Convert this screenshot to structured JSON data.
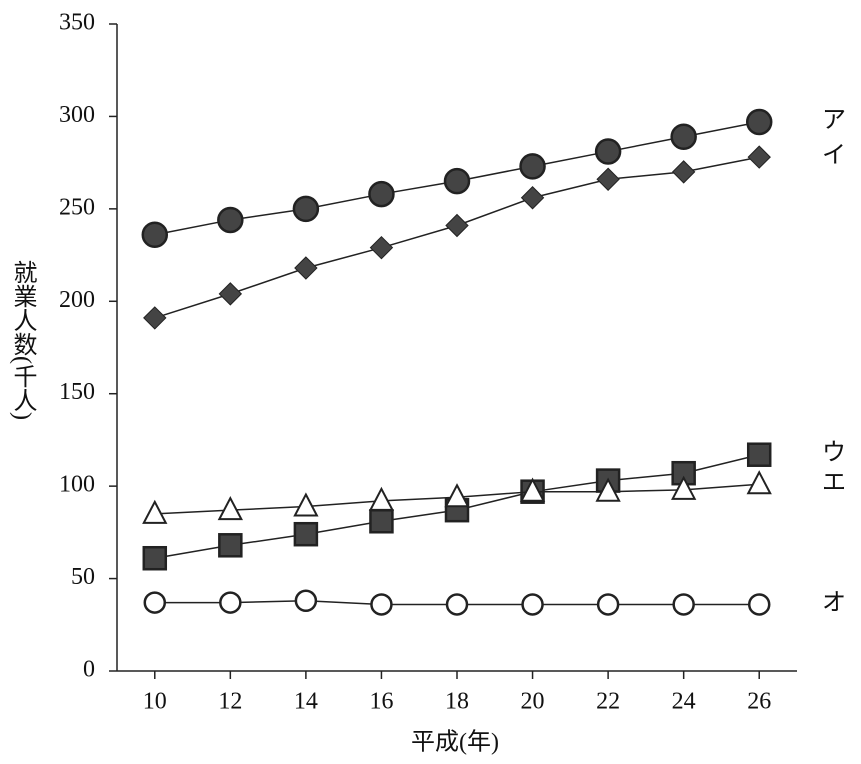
{
  "chart_data": {
    "type": "line",
    "x_label": "平成(年)",
    "y_label": "就業人数(千人)",
    "x": [
      10,
      12,
      14,
      16,
      18,
      20,
      22,
      24,
      26
    ],
    "xlim": [
      9,
      27
    ],
    "xticks": [
      10,
      12,
      14,
      16,
      18,
      20,
      22,
      24,
      26
    ],
    "ylim": [
      0,
      350
    ],
    "yticks": [
      0,
      50,
      100,
      150,
      200,
      250,
      300,
      350
    ],
    "grid": false,
    "series": [
      {
        "name": "ア",
        "color": "#444444",
        "marker": "filled-circle",
        "values": [
          236,
          244,
          250,
          258,
          265,
          273,
          281,
          289,
          297
        ]
      },
      {
        "name": "イ",
        "color": "#444444",
        "marker": "filled-diamond",
        "values": [
          191,
          204,
          218,
          229,
          241,
          256,
          266,
          270,
          278
        ]
      },
      {
        "name": "ウ",
        "color": "#444444",
        "marker": "filled-square",
        "values": [
          61,
          68,
          74,
          81,
          87,
          97,
          103,
          107,
          117
        ]
      },
      {
        "name": "エ",
        "color": "#444444",
        "marker": "open-triangle",
        "values": [
          85,
          87,
          89,
          92,
          94,
          97,
          97,
          98,
          101
        ]
      },
      {
        "name": "オ",
        "color": "#444444",
        "marker": "open-circle",
        "values": [
          37,
          37,
          38,
          36,
          36,
          36,
          36,
          36,
          36
        ]
      }
    ]
  }
}
